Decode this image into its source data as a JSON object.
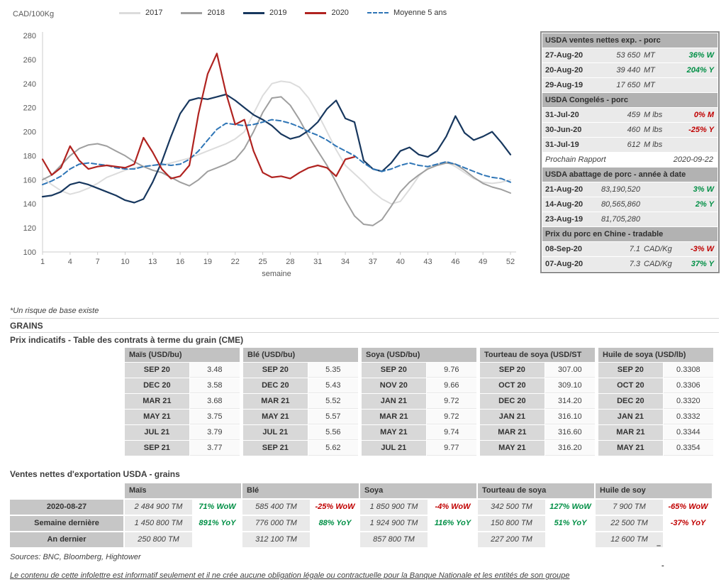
{
  "chart_data": {
    "type": "line",
    "title": "",
    "xlabel": "semaine",
    "ylabel": "CAD/100Kg",
    "ylim": [
      100,
      280
    ],
    "ytick_step": 20,
    "xtick_step": 3,
    "legend_position": "top",
    "grid": false,
    "x": [
      1,
      2,
      3,
      4,
      5,
      6,
      7,
      8,
      9,
      10,
      11,
      12,
      13,
      14,
      15,
      16,
      17,
      18,
      19,
      20,
      21,
      22,
      23,
      24,
      25,
      26,
      27,
      28,
      29,
      30,
      31,
      32,
      33,
      34,
      35,
      36,
      37,
      38,
      39,
      40,
      41,
      42,
      43,
      44,
      45,
      46,
      47,
      48,
      49,
      50,
      51,
      52
    ],
    "series": [
      {
        "name": "2017",
        "color": "#dcdcdc",
        "width": 2,
        "dash": false,
        "values": [
          162,
          156,
          151,
          148,
          150,
          153,
          157,
          162,
          165,
          168,
          170,
          171,
          172,
          172,
          174,
          176,
          178,
          181,
          184,
          187,
          190,
          194,
          200,
          215,
          230,
          240,
          242,
          241,
          237,
          228,
          215,
          200,
          185,
          172,
          165,
          158,
          150,
          144,
          140,
          142,
          152,
          163,
          170,
          173,
          175,
          171,
          166,
          161,
          158,
          157,
          158,
          160
        ]
      },
      {
        "name": "2018",
        "color": "#9f9f9f",
        "width": 2,
        "dash": false,
        "values": [
          160,
          164,
          172,
          180,
          186,
          189,
          190,
          188,
          184,
          180,
          175,
          171,
          168,
          166,
          162,
          158,
          155,
          160,
          167,
          170,
          173,
          177,
          186,
          200,
          216,
          228,
          229,
          222,
          210,
          196,
          184,
          172,
          158,
          143,
          130,
          123,
          122,
          127,
          138,
          150,
          158,
          164,
          169,
          172,
          174,
          173,
          168,
          162,
          157,
          154,
          152,
          149
        ]
      },
      {
        "name": "2019",
        "color": "#17375e",
        "width": 2.2,
        "dash": false,
        "values": [
          146,
          147,
          150,
          156,
          158,
          156,
          153,
          150,
          147,
          143,
          141,
          144,
          158,
          175,
          196,
          215,
          226,
          228,
          227,
          229,
          231,
          226,
          220,
          214,
          210,
          205,
          198,
          194,
          196,
          201,
          208,
          219,
          226,
          211,
          208,
          176,
          169,
          167,
          174,
          184,
          187,
          181,
          179,
          184,
          196,
          213,
          199,
          193,
          196,
          200,
          191,
          181
        ]
      },
      {
        "name": "2020",
        "color": "#b02320",
        "width": 2.2,
        "dash": false,
        "values": [
          177,
          164,
          170,
          188,
          176,
          169,
          171,
          172,
          171,
          170,
          173,
          195,
          183,
          169,
          161,
          163,
          172,
          215,
          248,
          265,
          232,
          206,
          210,
          184,
          166,
          162,
          163,
          161,
          166,
          170,
          172,
          170,
          163,
          177,
          179,
          null,
          null,
          null,
          null,
          null,
          null,
          null,
          null,
          null,
          null,
          null,
          null,
          null,
          null,
          null,
          null,
          null
        ]
      },
      {
        "name": "Moyenne 5 ans",
        "color": "#2e75b6",
        "width": 2,
        "dash": true,
        "values": [
          156,
          159,
          163,
          169,
          173,
          174,
          173,
          172,
          170,
          169,
          169,
          171,
          172,
          173,
          172,
          173,
          177,
          184,
          193,
          202,
          207,
          206,
          205,
          206,
          208,
          210,
          209,
          207,
          204,
          200,
          197,
          193,
          188,
          184,
          180,
          174,
          169,
          167,
          169,
          172,
          174,
          172,
          171,
          173,
          175,
          173,
          170,
          167,
          164,
          162,
          161,
          158
        ]
      }
    ]
  },
  "pork_panel": {
    "rows": [
      {
        "type": "header",
        "label": "USDA ventes nettes exp. - porc"
      },
      {
        "type": "data",
        "date": "27-Aug-20",
        "value": "53 650",
        "unit": "MT",
        "pct": "36% W",
        "pct_color": "green"
      },
      {
        "type": "data",
        "date": "20-Aug-20",
        "value": "39 440",
        "unit": "MT",
        "pct": "204% Y",
        "pct_color": "green"
      },
      {
        "type": "data",
        "date": "29-Aug-19",
        "value": "17 650",
        "unit": "MT",
        "pct": "",
        "pct_color": ""
      },
      {
        "type": "header",
        "label": "USDA Congelés - porc"
      },
      {
        "type": "data",
        "date": "31-Jul-20",
        "value": "459",
        "unit": "M lbs",
        "pct": "0% M",
        "pct_color": "red"
      },
      {
        "type": "data",
        "date": "30-Jun-20",
        "value": "460",
        "unit": "M lbs",
        "pct": "-25% Y",
        "pct_color": "red"
      },
      {
        "type": "data",
        "date": "31-Jul-19",
        "value": "612",
        "unit": "M lbs",
        "pct": "",
        "pct_color": ""
      },
      {
        "type": "report",
        "label": "Prochain Rapport",
        "value": "2020-09-22"
      },
      {
        "type": "header",
        "label": "USDA abattage de porc - année à date"
      },
      {
        "type": "data",
        "date": "21-Aug-20",
        "value": "83,190,520",
        "unit": "",
        "pct": "3% W",
        "pct_color": "green"
      },
      {
        "type": "data",
        "date": "14-Aug-20",
        "value": "80,565,860",
        "unit": "",
        "pct": "2% Y",
        "pct_color": "green"
      },
      {
        "type": "data",
        "date": "23-Aug-19",
        "value": "81,705,280",
        "unit": "",
        "pct": "",
        "pct_color": ""
      },
      {
        "type": "header",
        "label": "Prix du porc en Chine - tradable"
      },
      {
        "type": "data",
        "date": "08-Sep-20",
        "value": "7.1",
        "unit": "CAD/Kg",
        "pct": "-3% W",
        "pct_color": "red"
      },
      {
        "type": "data",
        "date": "07-Aug-20",
        "value": "7.3",
        "unit": "CAD/Kg",
        "pct": "37% Y",
        "pct_color": "green"
      }
    ]
  },
  "notes": {
    "risk": "*Un risque de base existe",
    "sources": "Sources: BNC, Bloomberg, Hightower",
    "disclaimer": "Le contenu de cette infolettre est informatif seulement et il ne crée aucune obligation légale ou contractuelle pour la Banque Nationale et les entités de son groupe"
  },
  "grains": {
    "heading": "GRAINS"
  },
  "futures": {
    "title": "Prix indicatifs - Table des contrats à terme du grain (CME)",
    "groups": [
      {
        "header": "Maïs (USD/bu)",
        "rows": [
          [
            "SEP 20",
            "3.48"
          ],
          [
            "DEC 20",
            "3.58"
          ],
          [
            "MAR 21",
            "3.68"
          ],
          [
            "MAY 21",
            "3.75"
          ],
          [
            "JUL 21",
            "3.79"
          ],
          [
            "SEP 21",
            "3.77"
          ]
        ]
      },
      {
        "header": "Blé (USD/bu)",
        "rows": [
          [
            "SEP 20",
            "5.35"
          ],
          [
            "DEC 20",
            "5.43"
          ],
          [
            "MAR 21",
            "5.52"
          ],
          [
            "MAY 21",
            "5.57"
          ],
          [
            "JUL 21",
            "5.56"
          ],
          [
            "SEP 21",
            "5.62"
          ]
        ]
      },
      {
        "header": "Soya (USD/bu)",
        "rows": [
          [
            "SEP 20",
            "9.76"
          ],
          [
            "NOV 20",
            "9.66"
          ],
          [
            "JAN 21",
            "9.72"
          ],
          [
            "MAR 21",
            "9.72"
          ],
          [
            "MAY 21",
            "9.74"
          ],
          [
            "JUL 21",
            "9.77"
          ]
        ]
      },
      {
        "header": "Tourteau de soya (USD/ST",
        "rows": [
          [
            "SEP 20",
            "307.00"
          ],
          [
            "OCT 20",
            "309.10"
          ],
          [
            "DEC 20",
            "314.20"
          ],
          [
            "JAN 21",
            "316.10"
          ],
          [
            "MAR 21",
            "316.60"
          ],
          [
            "MAY 21",
            "316.20"
          ]
        ]
      },
      {
        "header": "Huile de soya (USD/lb)",
        "rows": [
          [
            "SEP 20",
            "0.3308"
          ],
          [
            "OCT 20",
            "0.3306"
          ],
          [
            "DEC 20",
            "0.3320"
          ],
          [
            "JAN 21",
            "0.3332"
          ],
          [
            "MAR 21",
            "0.3344"
          ],
          [
            "MAY 21",
            "0.3354"
          ]
        ]
      }
    ]
  },
  "exports": {
    "title": "Ventes nettes d'exportation USDA - grains",
    "col_headers": [
      "Maïs",
      "Blé",
      "Soya",
      "Tourteau de soya",
      "Huile de soy"
    ],
    "rows": [
      {
        "label": "2020-08-27",
        "cells": [
          {
            "v": "2 484 900 TM",
            "p": "71% WoW",
            "c": "green"
          },
          {
            "v": "585 400 TM",
            "p": "-25% WoW",
            "c": "red"
          },
          {
            "v": "1 850 900 TM",
            "p": "-4% WoW",
            "c": "red"
          },
          {
            "v": "342 500 TM",
            "p": "127% WoW",
            "c": "green"
          },
          {
            "v": "7 900 TM",
            "p": "-65% WoW",
            "c": "red"
          }
        ]
      },
      {
        "label": "Semaine dernière",
        "cells": [
          {
            "v": "1 450 800 TM",
            "p": "891% YoY",
            "c": "green"
          },
          {
            "v": "776 000 TM",
            "p": "88% YoY",
            "c": "green"
          },
          {
            "v": "1 924 900 TM",
            "p": "116% YoY",
            "c": "green"
          },
          {
            "v": "150 800 TM",
            "p": "51% YoY",
            "c": "green"
          },
          {
            "v": "22 500 TM",
            "p": "-37% YoY",
            "c": "red"
          }
        ]
      },
      {
        "label": "An dernier",
        "cells": [
          {
            "v": "250 800 TM",
            "p": "",
            "c": ""
          },
          {
            "v": "312 100 TM",
            "p": "",
            "c": ""
          },
          {
            "v": "857 800 TM",
            "p": "",
            "c": ""
          },
          {
            "v": "227 200 TM",
            "p": "",
            "c": ""
          },
          {
            "v": "12 600 TM",
            "p": "",
            "c": ""
          }
        ]
      }
    ]
  },
  "artifacts": {
    "dash1": "–",
    "dash2": "-"
  },
  "colors": {
    "positive": "#008f45",
    "negative": "#c00000",
    "series_2019": "#17375e",
    "series_2020": "#b02320",
    "average_line": "#2e75b6"
  }
}
